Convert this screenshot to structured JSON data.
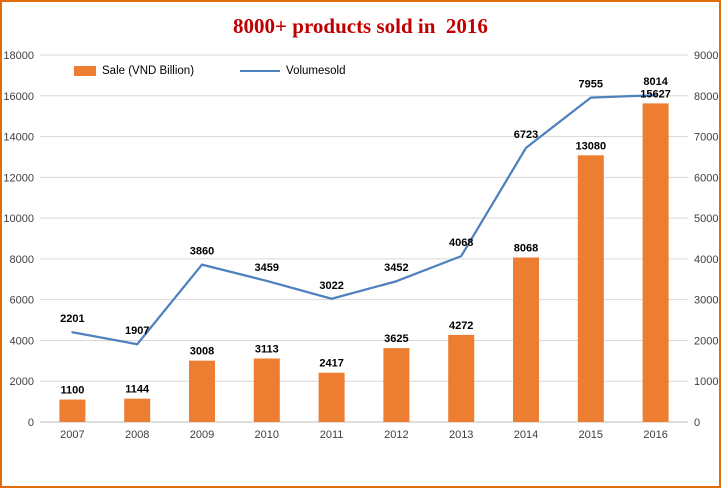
{
  "title": "8000+ products sold in  2016",
  "legend": {
    "series1": "Sale (VND Billion)",
    "series2": "Volumesold"
  },
  "colors": {
    "bar": "#ED7D31",
    "line": "#4E81BD",
    "title": "#C00000",
    "grid": "#D9D9D9",
    "axis_line": "#BFBFBF",
    "axis_text": "#404040",
    "border": "#E36C0A"
  },
  "chart_data": {
    "type": "bar",
    "subtype": "combo-bar-line",
    "title": "8000+ products sold in  2016",
    "categories": [
      "2007",
      "2008",
      "2009",
      "2010",
      "2011",
      "2012",
      "2013",
      "2014",
      "2015",
      "2016"
    ],
    "series": [
      {
        "name": "Sale (VND Billion)",
        "type": "bar",
        "axis": "left",
        "values": [
          1100,
          1144,
          3008,
          3113,
          2417,
          3625,
          4272,
          8068,
          13080,
          15627
        ]
      },
      {
        "name": "Volumesold",
        "type": "line",
        "axis": "right",
        "values": [
          2201,
          1907,
          3860,
          3459,
          3022,
          3452,
          4068,
          6723,
          7955,
          8014
        ]
      }
    ],
    "left_axis": {
      "min": 0,
      "max": 18000,
      "step": 2000,
      "ticks": [
        0,
        2000,
        4000,
        6000,
        8000,
        10000,
        12000,
        14000,
        16000,
        18000
      ]
    },
    "right_axis": {
      "min": 0,
      "max": 9000,
      "step": 1000,
      "ticks": [
        0,
        1000,
        2000,
        3000,
        4000,
        5000,
        6000,
        7000,
        8000,
        9000
      ]
    },
    "grid": true,
    "data_labels": true,
    "legend_position": "top-left"
  }
}
